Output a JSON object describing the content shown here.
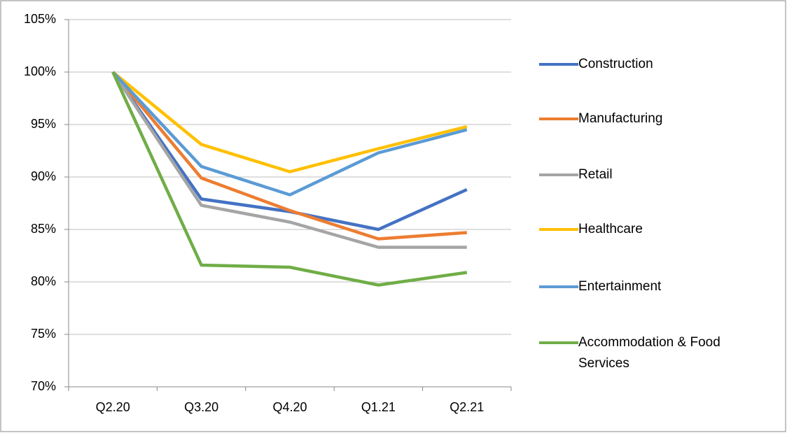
{
  "chart_data": {
    "type": "line",
    "categories": [
      "Q2.20",
      "Q3.20",
      "Q4.20",
      "Q1.21",
      "Q2.21"
    ],
    "series": [
      {
        "name": "Construction",
        "color": "#4472c4",
        "values": [
          100,
          87.9,
          86.7,
          85.0,
          88.8
        ]
      },
      {
        "name": "Manufacturing",
        "color": "#ed7d31",
        "values": [
          100,
          89.9,
          86.8,
          84.1,
          84.7
        ]
      },
      {
        "name": "Retail",
        "color": "#a5a5a5",
        "values": [
          100,
          87.3,
          85.7,
          83.3,
          83.3
        ]
      },
      {
        "name": "Healthcare",
        "color": "#ffc000",
        "values": [
          100,
          93.1,
          90.5,
          92.7,
          94.8
        ]
      },
      {
        "name": "Entertainment",
        "color": "#5b9bd5",
        "values": [
          100,
          91.0,
          88.3,
          92.3,
          94.5
        ]
      },
      {
        "name": "Accommodation & Food Services",
        "color": "#70ad47",
        "values": [
          100,
          81.6,
          81.4,
          79.7,
          80.9
        ]
      }
    ],
    "ylim": [
      70,
      105
    ],
    "yticks": [
      {
        "value": 70,
        "label": "70%"
      },
      {
        "value": 75,
        "label": "75%"
      },
      {
        "value": 80,
        "label": "80%"
      },
      {
        "value": 85,
        "label": "85%"
      },
      {
        "value": 90,
        "label": "90%"
      },
      {
        "value": 95,
        "label": "95%"
      },
      {
        "value": 100,
        "label": "100%"
      },
      {
        "value": 105,
        "label": "105%"
      }
    ],
    "grid": true,
    "legend": "right"
  }
}
